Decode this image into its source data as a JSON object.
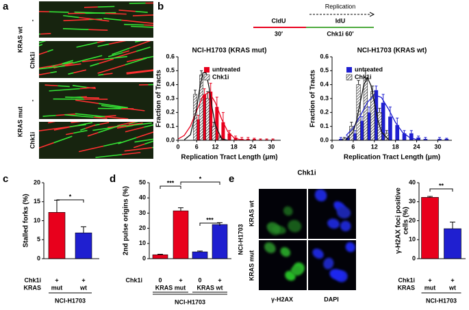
{
  "figure": {
    "panel_labels": [
      "a",
      "b",
      "c",
      "d",
      "e"
    ],
    "a": {
      "labels": [
        "KRAS wt",
        "KRAS mut"
      ],
      "conditions": [
        "-",
        "Chk1i",
        "-",
        "Chk1i"
      ]
    },
    "b": {
      "header": "Replication",
      "pulses": [
        "CldU",
        "IdU"
      ],
      "durations": [
        "30′",
        "Chk1i 60′"
      ]
    },
    "e": {
      "title": "Chk1i",
      "rows": [
        "KRAS wt",
        "KRAS mut"
      ],
      "cell_line": "NCI-H1703",
      "stains": [
        "γ-H2AX",
        "DAPI"
      ]
    }
  },
  "chart_data": [
    {
      "type": "distribution",
      "title": "NCI-H1703 (KRAS mut)",
      "xlabel": "Replication Tract Length (μm)",
      "ylabel": "Fraction of Tracts",
      "xlim": [
        0,
        33
      ],
      "xticks": [
        0,
        6,
        12,
        18,
        24,
        30
      ],
      "ylim": [
        0,
        0.6
      ],
      "yticks": [
        {
          "value": 0,
          "label": "0.0"
        },
        {
          "value": 0.1,
          "label": "0.1"
        },
        {
          "value": 0.2,
          "label": "0.2"
        },
        {
          "value": 0.3,
          "label": "0.3"
        },
        {
          "value": 0.4,
          "label": "0.4"
        },
        {
          "value": 0.5,
          "label": "0.5"
        },
        {
          "value": 0.6,
          "label": "0.6"
        }
      ],
      "x": [
        6,
        8,
        10,
        12,
        14,
        16,
        18,
        20,
        22,
        24,
        26,
        28,
        30
      ],
      "series": [
        {
          "name": "untreated",
          "color": "#e8001c",
          "values": [
            0.15,
            0.33,
            0.35,
            0.24,
            0.13,
            0.05,
            0.02,
            0.01,
            0.01,
            0.01,
            0.005,
            0.005,
            0.005
          ],
          "errors": [
            0.03,
            0.04,
            0.06,
            0.07,
            0.07,
            0.02,
            0.01,
            0.01,
            0.01,
            0.005,
            0.005,
            0.005,
            0.005
          ],
          "fit": {
            "x": [
              0,
              2,
              4,
              6,
              8,
              10,
              12,
              14,
              16,
              18,
              20,
              22
            ],
            "values": [
              0.009,
              0.035,
              0.102,
              0.212,
              0.319,
              0.346,
              0.271,
              0.153,
              0.062,
              0.018,
              0.004,
              0
            ]
          }
        },
        {
          "name": "Chk1i",
          "color": "#111111",
          "pattern": "hatched",
          "values": [
            0.33,
            0.47,
            0.3,
            0.1,
            0.02,
            0,
            0,
            0,
            0,
            0,
            0,
            0,
            0
          ],
          "errors": [
            0.03,
            0.03,
            0.05,
            0.03,
            0.01,
            0,
            0,
            0,
            0,
            0,
            0,
            0,
            0
          ],
          "fit": {
            "x": [
              2,
              4,
              6,
              7,
              8,
              9,
              10,
              11,
              12,
              14,
              16
            ],
            "values": [
              0.003,
              0.04,
              0.229,
              0.378,
              0.485,
              0.485,
              0.378,
              0.229,
              0.108,
              0.011,
              0
            ]
          }
        }
      ]
    },
    {
      "type": "distribution",
      "title": "NCI-H1703 (KRAS wt)",
      "xlabel": "Replication Tract Length (μm)",
      "ylabel": "Fraction of Tracts",
      "xlim": [
        0,
        34
      ],
      "xticks": [
        0,
        6,
        12,
        18,
        24,
        30
      ],
      "ylim": [
        0,
        0.6
      ],
      "yticks": [
        {
          "value": 0,
          "label": "0.0"
        },
        {
          "value": 0.1,
          "label": "0.1"
        },
        {
          "value": 0.2,
          "label": "0.2"
        },
        {
          "value": 0.3,
          "label": "0.3"
        },
        {
          "value": 0.4,
          "label": "0.4"
        },
        {
          "value": 0.5,
          "label": "0.5"
        },
        {
          "value": 0.6,
          "label": "0.6"
        }
      ],
      "x": [
        2,
        4,
        6,
        8,
        10,
        12,
        14,
        16,
        18,
        20,
        22,
        24,
        26,
        28,
        30,
        32
      ],
      "series": [
        {
          "name": "untreated",
          "color": "#1f1fd0",
          "values": [
            0.01,
            0.02,
            0.05,
            0.14,
            0.2,
            0.36,
            0.27,
            0.17,
            0.11,
            0.05,
            0.05,
            0.02,
            0.01,
            0,
            0.01,
            0.01
          ],
          "errors": [
            0.01,
            0.01,
            0.02,
            0.03,
            0.04,
            0.03,
            0.06,
            0.07,
            0.05,
            0.02,
            0.02,
            0.01,
            0.01,
            0,
            0.01,
            0.005
          ],
          "fit": {
            "x": [
              4,
              6,
              8,
              10,
              12,
              14,
              16,
              18,
              20,
              22,
              24
            ],
            "values": [
              0.035,
              0.088,
              0.175,
              0.272,
              0.327,
              0.308,
              0.225,
              0.128,
              0.057,
              0.02,
              0.005
            ]
          }
        },
        {
          "name": "Chk1i",
          "color": "#111111",
          "pattern": "hatched",
          "values": [
            0,
            0.01,
            0.1,
            0.4,
            0.45,
            0.35,
            0.2,
            0.05,
            0,
            0,
            0,
            0,
            0,
            0,
            0,
            0
          ],
          "errors": [
            0,
            0.01,
            0.03,
            0.03,
            0.05,
            0.04,
            0.03,
            0.02,
            0,
            0,
            0,
            0,
            0,
            0,
            0,
            0
          ],
          "fit": {
            "x": [
              4,
              6,
              7,
              8,
              9,
              10,
              11,
              12,
              13,
              14,
              16
            ],
            "values": [
              0.005,
              0.061,
              0.146,
              0.273,
              0.397,
              0.45,
              0.397,
              0.273,
              0.146,
              0.061,
              0.005
            ]
          }
        }
      ]
    },
    {
      "type": "bar",
      "ylabel": "Stalled forks (%)",
      "ylim": [
        0,
        20
      ],
      "yticks": [
        0,
        5,
        10,
        15,
        20
      ],
      "values": [
        12.2,
        6.8
      ],
      "errors": [
        3.2,
        1.6
      ],
      "colors": [
        "#e8001c",
        "#1f1fd0"
      ],
      "rows": [
        {
          "label": "Chk1i",
          "cells": [
            "+",
            "+"
          ]
        },
        {
          "label": "KRAS",
          "cells": [
            "mut",
            "wt"
          ]
        }
      ],
      "group": "NCI-H1703",
      "significance": [
        "*"
      ]
    },
    {
      "type": "bar",
      "ylabel": "2nd pulse origins (%)",
      "ylim": [
        0,
        50
      ],
      "yticks": [
        0,
        10,
        20,
        30,
        40,
        50
      ],
      "values": [
        2.6,
        31.5,
        4.5,
        22.5
      ],
      "errors": [
        0.3,
        2,
        0.5,
        1.2
      ],
      "colors": [
        "#e8001c",
        "#e8001c",
        "#1f1fd0",
        "#1f1fd0"
      ],
      "rows": [
        {
          "label": "Chk1i",
          "cells": [
            "0",
            "+",
            "0",
            "+"
          ]
        },
        {
          "cells": [
            "KRAS mut",
            "KRAS wt"
          ]
        }
      ],
      "group": "NCI-H1703",
      "significance": [
        "***",
        "*",
        "***"
      ]
    },
    {
      "type": "bar",
      "ylabel": [
        "γ-H2AX foci positive",
        "cells (%)"
      ],
      "ylim": [
        0,
        40
      ],
      "yticks": [
        0,
        10,
        20,
        30,
        40
      ],
      "values": [
        32.3,
        15.8
      ],
      "errors": [
        0.5,
        3.5
      ],
      "colors": [
        "#e8001c",
        "#1f1fd0"
      ],
      "rows": [
        {
          "label": "Chk1i",
          "cells": [
            "+",
            "+"
          ]
        },
        {
          "label": "KRAS",
          "cells": [
            "mut",
            "wt"
          ]
        }
      ],
      "group": "NCI-H1703",
      "significance": [
        "**"
      ]
    }
  ]
}
